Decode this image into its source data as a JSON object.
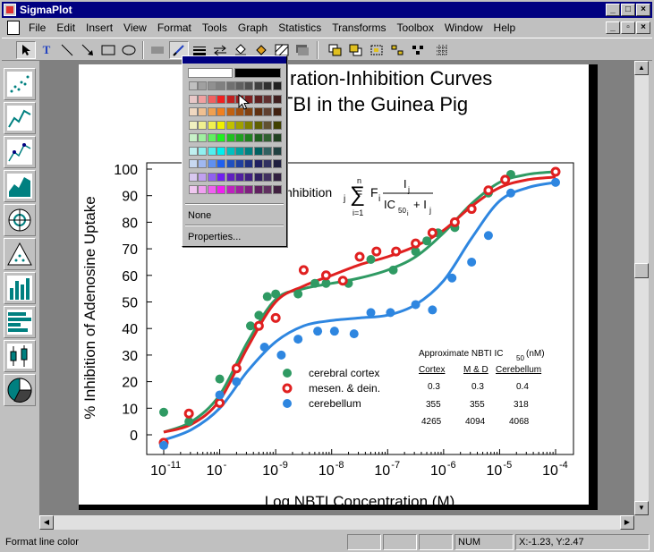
{
  "app": {
    "title": "SigmaPlot"
  },
  "menu": [
    "File",
    "Edit",
    "Insert",
    "View",
    "Format",
    "Tools",
    "Graph",
    "Statistics",
    "Transforms",
    "Toolbox",
    "Window",
    "Help"
  ],
  "color_popup": {
    "none_label": "None",
    "properties_label": "Properties...",
    "swatch_colors": [
      [
        "#c0c0c0",
        "#a0a0a0",
        "#909090",
        "#808080",
        "#707070",
        "#606060",
        "#505050",
        "#404040",
        "#303030",
        "#202020"
      ],
      [
        "#e8c8c8",
        "#f0a0a0",
        "#f06060",
        "#f02020",
        "#c02020",
        "#a02020",
        "#802020",
        "#602020",
        "#603030",
        "#402020"
      ],
      [
        "#f0d8c0",
        "#f0c090",
        "#f0a050",
        "#f08020",
        "#c06010",
        "#a05010",
        "#804010",
        "#603010",
        "#604030",
        "#402010"
      ],
      [
        "#f0f0c0",
        "#f0f090",
        "#f0f050",
        "#f0f000",
        "#c0c000",
        "#a0a000",
        "#808000",
        "#606000",
        "#605030",
        "#404000"
      ],
      [
        "#c8f0c8",
        "#a0f0a0",
        "#60f060",
        "#20f020",
        "#20c020",
        "#20a020",
        "#208020",
        "#206020",
        "#306030",
        "#204020"
      ],
      [
        "#c0f0f0",
        "#90f0f0",
        "#50f0f0",
        "#00f0f0",
        "#00c0c0",
        "#00a0a0",
        "#008080",
        "#006060",
        "#306060",
        "#204040"
      ],
      [
        "#c8d8f0",
        "#a0b8f0",
        "#6090f0",
        "#2060f0",
        "#2050c0",
        "#2040a0",
        "#203080",
        "#202060",
        "#303060",
        "#202040"
      ],
      [
        "#d8c8f0",
        "#c0a0f0",
        "#9060f0",
        "#7020f0",
        "#6020c0",
        "#5020a0",
        "#402080",
        "#302060",
        "#403060",
        "#302040"
      ],
      [
        "#f0c8f0",
        "#f0a0f0",
        "#f060f0",
        "#f020f0",
        "#c020c0",
        "#a020a0",
        "#802080",
        "#602060",
        "#603060",
        "#402040"
      ]
    ]
  },
  "statusbar": {
    "message": "Format line color",
    "num": "NUM",
    "coords": "X:-1.23, Y:2.47"
  },
  "graph": {
    "title_line1": "ration-Inhibition Curves",
    "title_line2": "TBI in the Guinea Pig",
    "formula_prefix": "nhibition",
    "formula_sub_j": "j",
    "formula_eq": "=",
    "formula_sigma": "∑",
    "formula_top": "n",
    "formula_bottom": "i=1",
    "formula_F": "F",
    "formula_i": "i",
    "formula_num": "I",
    "formula_num_sub": "j",
    "formula_den": "IC",
    "formula_den_sub": "50",
    "formula_den_sub2": "i",
    "formula_den_plus": "+ I",
    "formula_den_plus_sub": "j",
    "table_title": "Approximate  NBTI IC",
    "table_title_sub": "50",
    "table_title_unit": "(nM)",
    "table_headers": [
      "Cortex",
      "M & D",
      "Cerebellum"
    ],
    "table_rows": [
      [
        "0.3",
        "0.3",
        "0.4"
      ],
      [
        "355",
        "355",
        "318"
      ],
      [
        "4265",
        "4094",
        "4068"
      ]
    ]
  },
  "chart_data": {
    "type": "scatter",
    "xlabel": "Log NBTI Concentration (M)",
    "ylabel": "% Inhibition of Adenosine Uptake",
    "xscale": "log",
    "xlim": [
      -11,
      -4
    ],
    "ylim": [
      -5,
      105
    ],
    "x_ticks": [
      "10-11",
      "10-10",
      "10-9",
      "10-8",
      "10-7",
      "10-6",
      "10-5",
      "10-4"
    ],
    "y_ticks": [
      0,
      10,
      20,
      30,
      40,
      50,
      60,
      70,
      80,
      90,
      100
    ],
    "legend_position": "lower-middle",
    "series": [
      {
        "name": "cerebral cortex",
        "color": "#2f9a63",
        "marker": "dot",
        "x": [
          -11,
          -10.55,
          -10,
          -9.7,
          -9.45,
          -9.3,
          -9.15,
          -9,
          -8.6,
          -8.3,
          -8.1,
          -7.7,
          -7.3,
          -6.9,
          -6.5,
          -6.3,
          -6.1,
          -5.8,
          -5.5,
          -5.2,
          -4.8,
          -4.0
        ],
        "y": [
          8.5,
          5,
          21,
          25,
          41,
          45,
          52,
          53,
          53,
          57,
          57,
          57,
          66,
          62,
          69,
          73,
          76,
          78,
          85,
          91,
          98,
          99
        ]
      },
      {
        "name": "mesen. & dein.",
        "color": "#e02020",
        "marker": "ring",
        "x": [
          -11,
          -10.55,
          -10,
          -9.7,
          -9.3,
          -9.0,
          -8.5,
          -8.1,
          -7.8,
          -7.5,
          -7.2,
          -6.85,
          -6.5,
          -6.2,
          -5.8,
          -5.5,
          -5.2,
          -4.9,
          -4.0
        ],
        "y": [
          -3,
          8,
          12,
          25,
          41,
          44,
          62,
          60,
          58,
          67,
          69,
          69,
          72,
          76,
          80,
          85,
          92,
          96,
          99
        ]
      },
      {
        "name": "cerebellum",
        "color": "#2e86e0",
        "marker": "dot",
        "x": [
          -11,
          -10,
          -9.7,
          -9.2,
          -8.9,
          -8.6,
          -8.25,
          -7.95,
          -7.6,
          -7.3,
          -6.95,
          -6.5,
          -6.2,
          -5.85,
          -5.5,
          -5.2,
          -4.8,
          -4.0
        ],
        "y": [
          -4,
          15,
          20,
          33,
          30,
          36,
          39,
          39,
          38,
          46,
          46,
          49,
          47,
          59,
          65,
          75,
          91,
          95
        ]
      }
    ],
    "fit_curves": [
      {
        "name": "cerebral cortex",
        "color": "#2f9a63",
        "x": [
          -11,
          -10.5,
          -10,
          -9.5,
          -9,
          -8.5,
          -8,
          -7.5,
          -7,
          -6.5,
          -6,
          -5.5,
          -5,
          -4.5,
          -4
        ],
        "y": [
          1,
          5,
          15,
          35,
          51,
          55,
          57,
          59,
          62,
          67,
          76,
          87,
          95,
          98,
          99
        ]
      },
      {
        "name": "mesen. & dein.",
        "color": "#e02020",
        "x": [
          -11,
          -10.5,
          -10,
          -9.5,
          -9,
          -8.5,
          -8,
          -7.5,
          -7,
          -6.5,
          -6,
          -5.5,
          -5,
          -4.5,
          -4
        ],
        "y": [
          1,
          4,
          13,
          33,
          50,
          56,
          60,
          64,
          67,
          71,
          77,
          86,
          93,
          96,
          97
        ]
      },
      {
        "name": "cerebellum",
        "color": "#2e86e0",
        "x": [
          -11,
          -10.5,
          -10,
          -9.5,
          -9,
          -8.5,
          -8,
          -7.5,
          -7,
          -6.5,
          -6,
          -5.5,
          -5,
          -4.5,
          -4
        ],
        "y": [
          -2,
          2,
          10,
          24,
          35,
          41,
          43,
          44,
          45,
          49,
          58,
          74,
          88,
          93,
          95
        ]
      }
    ]
  }
}
